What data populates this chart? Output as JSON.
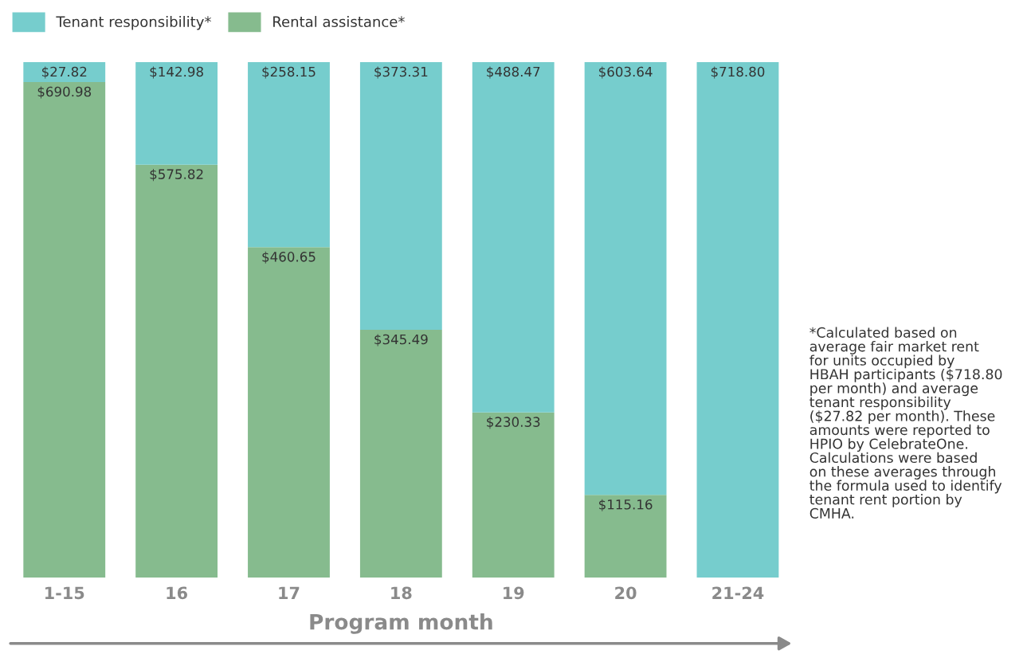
{
  "chart_data": {
    "type": "bar",
    "stacked": true,
    "xlabel": "Program month",
    "categories": [
      "1-15",
      "16",
      "17",
      "18",
      "19",
      "20",
      "21-24"
    ],
    "series": [
      {
        "name": "Rental assistance*",
        "color": "#86bb8e",
        "values": [
          690.98,
          575.82,
          460.65,
          345.49,
          230.33,
          115.16,
          null
        ],
        "value_labels": [
          "$690.98",
          "$575.82",
          "$460.65",
          "$345.49",
          "$230.33",
          "$115.16",
          null
        ]
      },
      {
        "name": "Tenant responsibility*",
        "color": "#76cdcd",
        "values": [
          27.82,
          142.98,
          258.15,
          373.31,
          488.47,
          603.64,
          718.8
        ],
        "value_labels": [
          "$27.82",
          "$142.98",
          "$258.15",
          "$373.31",
          "$488.47",
          "$603.64",
          "$718.80"
        ]
      }
    ],
    "legend": "top left",
    "annotations": [
      "*Calculated based on\naverage fair market rent\nfor units occupied by\nHBAH participants ($718.80\nper month) and average\ntenant responsibility\n($27.82 per month). These\namounts were reported to\nHPIO by CelebrateOne.\nCalculations were based\non these averages through\nthe formula used to identify\ntenant rent portion by\nCMHA."
    ]
  }
}
